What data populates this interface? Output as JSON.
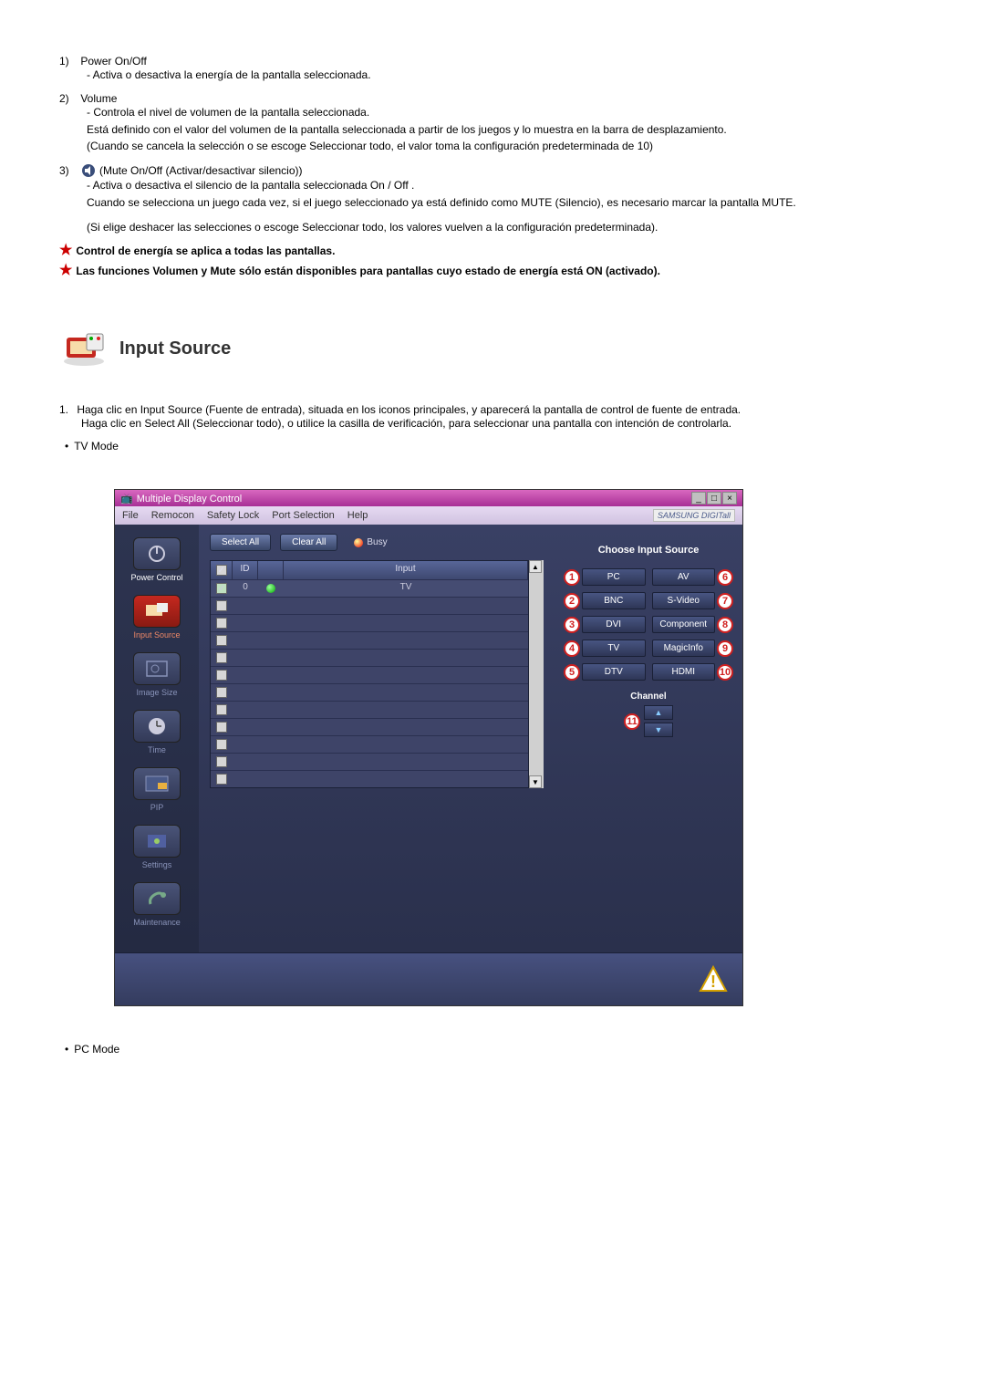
{
  "item1": {
    "num": "1)",
    "title": "Power On/Off",
    "line1": "- Activa o desactiva la energía de la pantalla seleccionada."
  },
  "item2": {
    "num": "2)",
    "title": "Volume",
    "line1": "- Controla el nivel de volumen de la pantalla seleccionada.",
    "line2": "Está definido con el valor del volumen de la pantalla seleccionada a partir de los juegos y lo muestra en la barra de desplazamiento.",
    "line3": "(Cuando se cancela la selección o se escoge Seleccionar todo, el valor toma la configuración predeterminada de 10)"
  },
  "item3": {
    "num": "3)",
    "title": "(Mute On/Off (Activar/desactivar silencio))",
    "line1": "- Activa o desactiva el silencio de la pantalla seleccionada On / Off .",
    "line2": "Cuando se selecciona un juego cada vez, si el juego seleccionado ya está definido como MUTE (Silencio), es necesario marcar la pantalla MUTE.",
    "line3": "(Si elige deshacer las selecciones o escoge Seleccionar todo, los valores vuelven a la configuración predeterminada)."
  },
  "star1": "Control de energía se aplica a todas las pantallas.",
  "star2": "Las funciones Volumen y Mute sólo están disponibles para pantallas cuyo estado de energía está ON (activado).",
  "section_title": "Input Source",
  "intro": {
    "num": "1.",
    "line1": "Haga clic en Input Source (Fuente de entrada), situada en los iconos principales, y aparecerá la pantalla de control de fuente de entrada.",
    "line2": "Haga clic en Select All (Seleccionar todo), o utilice la casilla de verificación, para seleccionar una pantalla con intención de controlarla."
  },
  "tv_mode": "TV Mode",
  "pc_mode": "PC Mode",
  "app": {
    "title": "Multiple Display Control",
    "brand": "SAMSUNG DIGITall",
    "menus": [
      "File",
      "Remocon",
      "Safety Lock",
      "Port Selection",
      "Help"
    ],
    "select_all": "Select All",
    "clear_all": "Clear All",
    "busy": "Busy",
    "sidebar": [
      {
        "label": "Power Control"
      },
      {
        "label": "Input Source"
      },
      {
        "label": "Image Size"
      },
      {
        "label": "Time"
      },
      {
        "label": "PIP"
      },
      {
        "label": "Settings"
      },
      {
        "label": "Maintenance"
      }
    ],
    "thead": {
      "id": "ID",
      "input": "Input"
    },
    "first_row": {
      "id": "0",
      "input": "TV"
    },
    "panel_title": "Choose Input Source",
    "sources_left": [
      {
        "n": "1",
        "label": "PC"
      },
      {
        "n": "2",
        "label": "BNC"
      },
      {
        "n": "3",
        "label": "DVI"
      },
      {
        "n": "4",
        "label": "TV"
      },
      {
        "n": "5",
        "label": "DTV"
      }
    ],
    "sources_right": [
      {
        "n": "6",
        "label": "AV"
      },
      {
        "n": "7",
        "label": "S-Video"
      },
      {
        "n": "8",
        "label": "Component"
      },
      {
        "n": "9",
        "label": "MagicInfo"
      },
      {
        "n": "10",
        "label": "HDMI"
      }
    ],
    "channel_label": "Channel",
    "ch_badge": "11"
  }
}
